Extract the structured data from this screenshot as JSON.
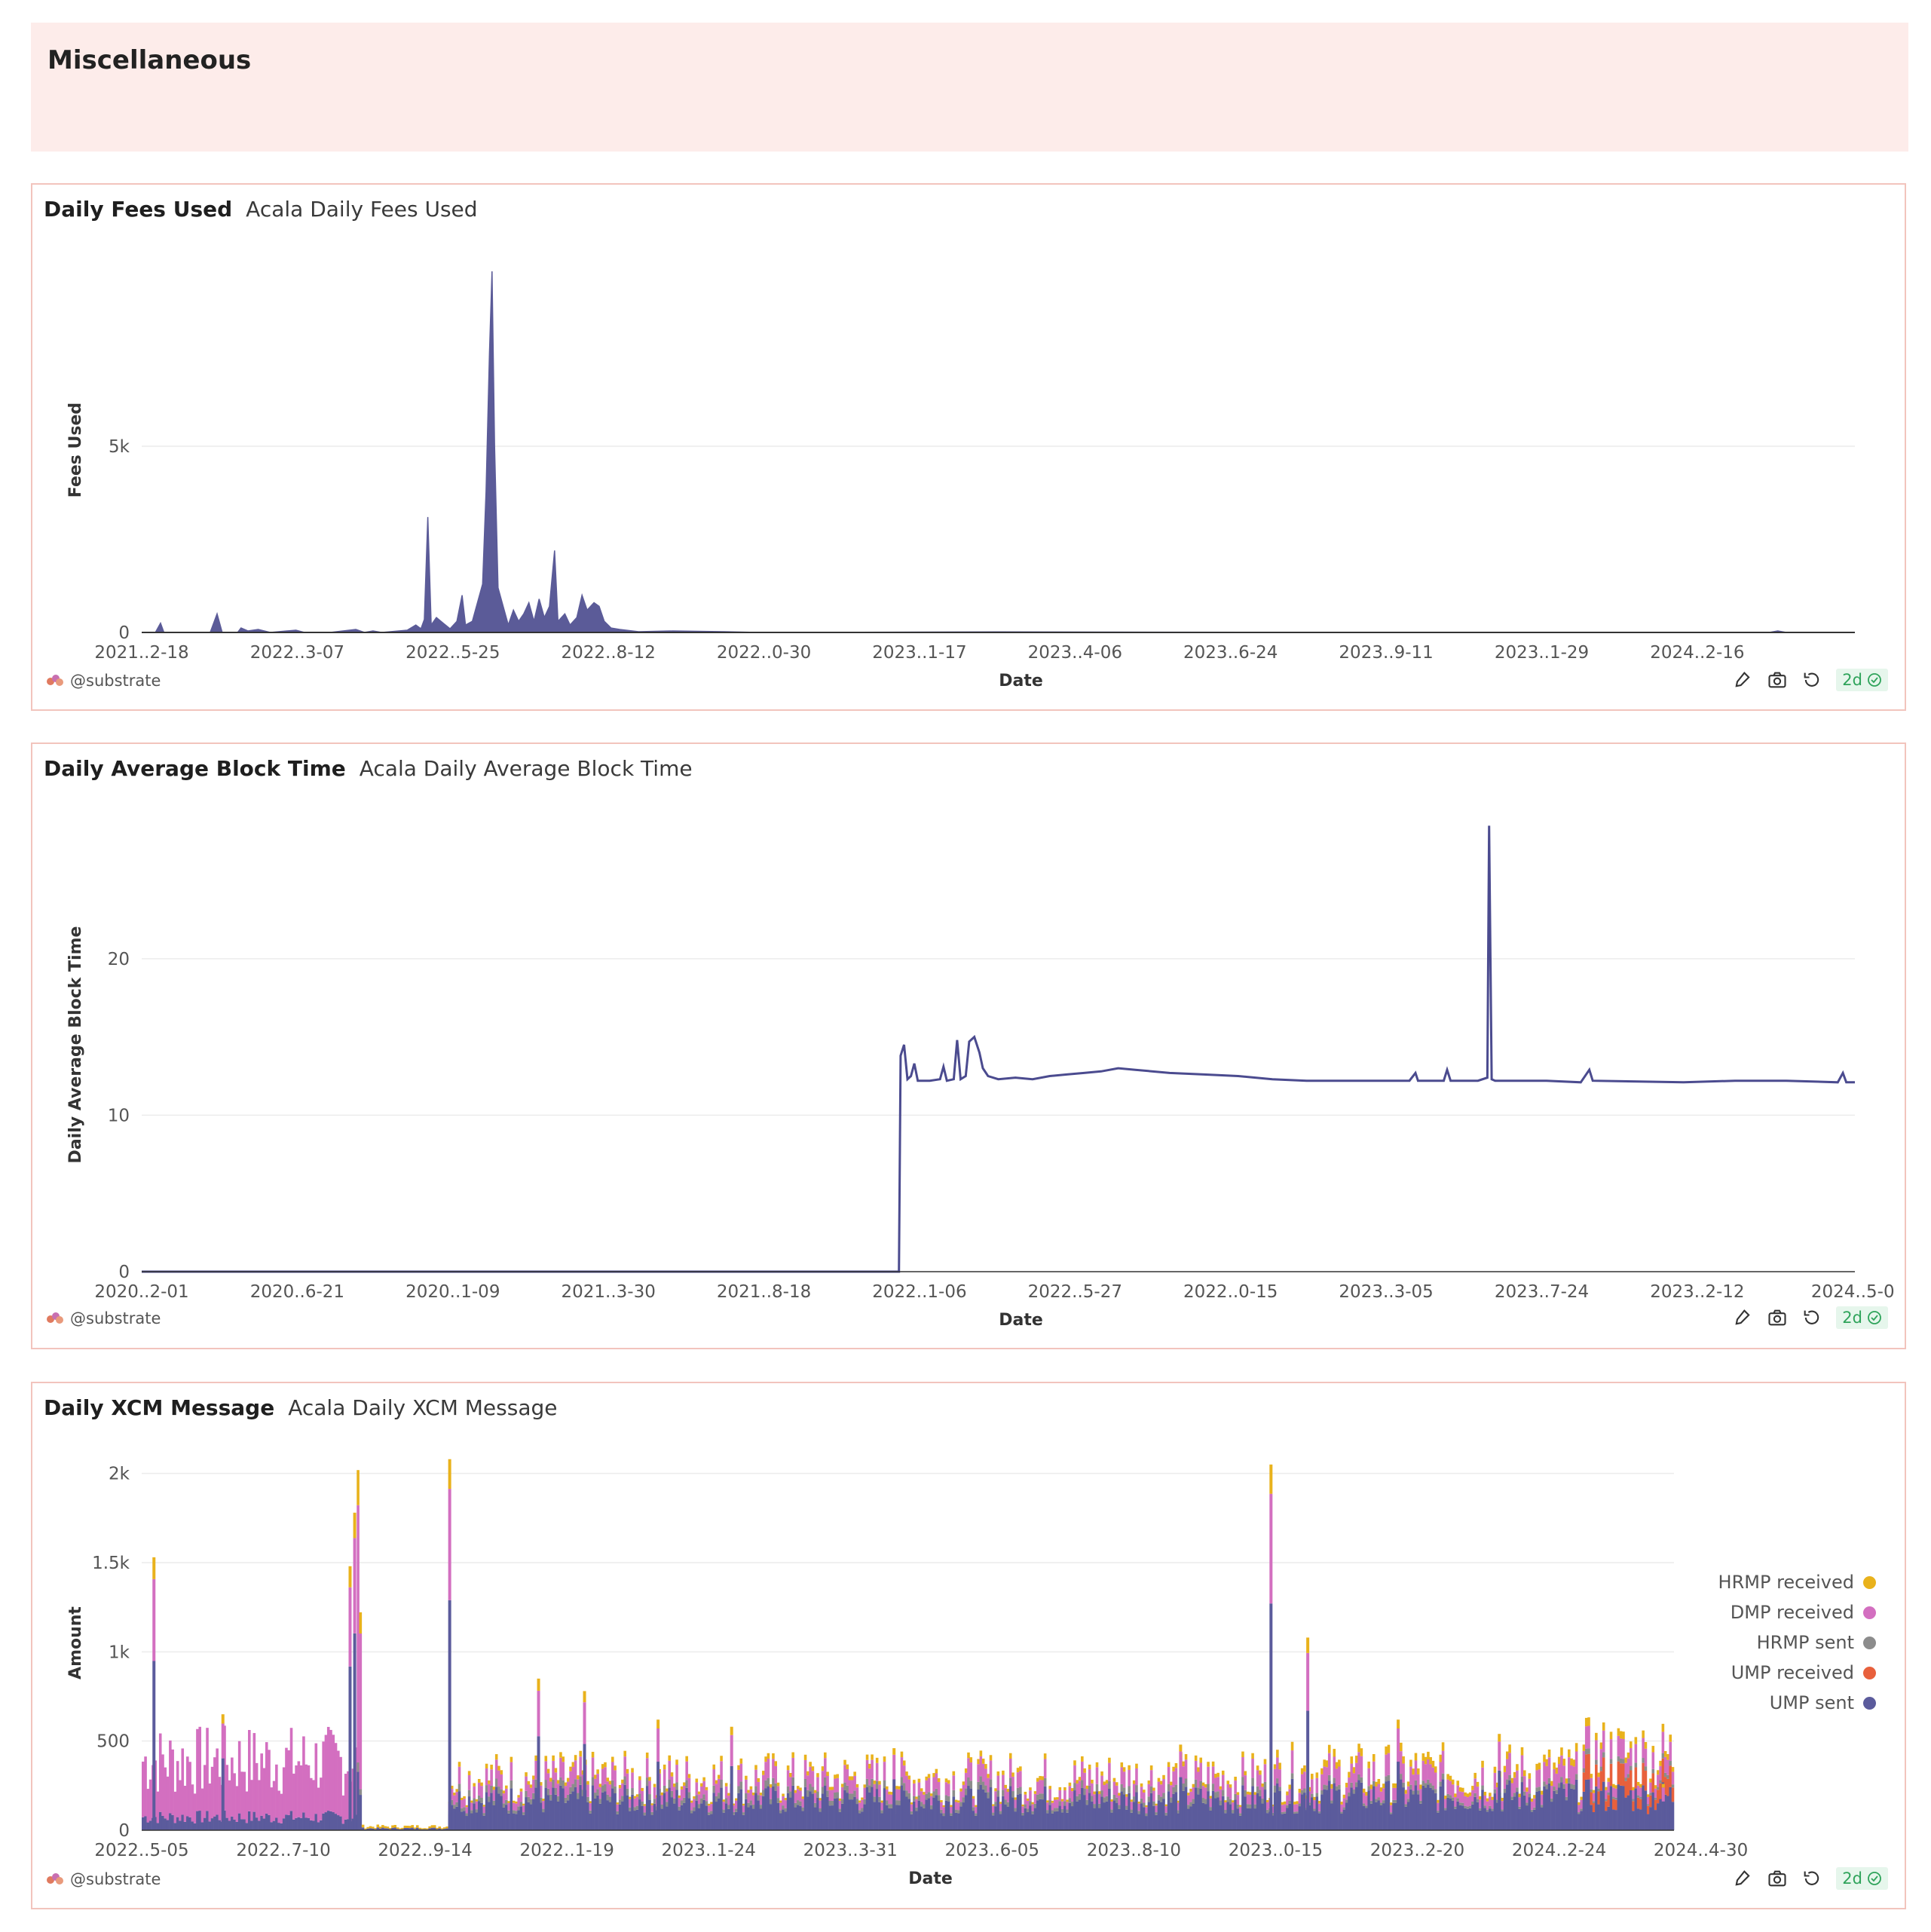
{
  "section": {
    "title": "Miscellaneous"
  },
  "panels": [
    {
      "title": "Daily Fees Used",
      "description": "Acala Daily Fees Used",
      "footer": {
        "brand": "@substrate",
        "age": "2d"
      }
    },
    {
      "title": "Daily Average Block Time",
      "description": "Acala Daily Average Block Time",
      "footer": {
        "brand": "@substrate",
        "age": "2d"
      }
    },
    {
      "title": "Daily XCM Message",
      "description": "Acala Daily XCM Message",
      "footer": {
        "brand": "@substrate",
        "age": "2d"
      }
    }
  ],
  "chart_data": [
    {
      "type": "area",
      "xlabel": "Date",
      "ylabel": "Fees Used",
      "x_ticks": [
        "2021..2-18",
        "2022..3-07",
        "2022..5-25",
        "2022..8-12",
        "2022..0-30",
        "2023..1-17",
        "2023..4-06",
        "2023..6-24",
        "2023..9-11",
        "2023..1-29",
        "2024..2-16"
      ],
      "y_ticks": [
        {
          "v": 0,
          "label": "0"
        },
        {
          "v": 5000,
          "label": "5k"
        }
      ],
      "ylim": [
        0,
        9800
      ],
      "grid": true,
      "series": [
        {
          "color": "#5b5b98",
          "points": [
            [
              0,
              0
            ],
            [
              0.008,
              0
            ],
            [
              0.011,
              250
            ],
            [
              0.013,
              0
            ],
            [
              0.04,
              0
            ],
            [
              0.044,
              500
            ],
            [
              0.047,
              0
            ],
            [
              0.056,
              0
            ],
            [
              0.058,
              120
            ],
            [
              0.062,
              40
            ],
            [
              0.068,
              80
            ],
            [
              0.075,
              0
            ],
            [
              0.09,
              60
            ],
            [
              0.095,
              0
            ],
            [
              0.11,
              0
            ],
            [
              0.125,
              80
            ],
            [
              0.13,
              0
            ],
            [
              0.135,
              40
            ],
            [
              0.14,
              0
            ],
            [
              0.155,
              60
            ],
            [
              0.16,
              200
            ],
            [
              0.163,
              100
            ],
            [
              0.165,
              350
            ],
            [
              0.167,
              3100
            ],
            [
              0.169,
              200
            ],
            [
              0.172,
              400
            ],
            [
              0.176,
              250
            ],
            [
              0.18,
              100
            ],
            [
              0.184,
              300
            ],
            [
              0.187,
              1000
            ],
            [
              0.189,
              200
            ],
            [
              0.193,
              300
            ],
            [
              0.196,
              800
            ],
            [
              0.199,
              1300
            ],
            [
              0.201,
              3800
            ],
            [
              0.203,
              7500
            ],
            [
              0.2045,
              9700
            ],
            [
              0.206,
              5000
            ],
            [
              0.208,
              1200
            ],
            [
              0.211,
              700
            ],
            [
              0.214,
              200
            ],
            [
              0.217,
              600
            ],
            [
              0.22,
              300
            ],
            [
              0.223,
              500
            ],
            [
              0.226,
              800
            ],
            [
              0.229,
              300
            ],
            [
              0.232,
              900
            ],
            [
              0.235,
              400
            ],
            [
              0.238,
              700
            ],
            [
              0.241,
              2200
            ],
            [
              0.243,
              300
            ],
            [
              0.247,
              500
            ],
            [
              0.25,
              200
            ],
            [
              0.254,
              400
            ],
            [
              0.257,
              1000
            ],
            [
              0.26,
              600
            ],
            [
              0.264,
              800
            ],
            [
              0.267,
              700
            ],
            [
              0.27,
              300
            ],
            [
              0.274,
              120
            ],
            [
              0.279,
              80
            ],
            [
              0.29,
              20
            ],
            [
              0.31,
              40
            ],
            [
              0.34,
              20
            ],
            [
              0.36,
              0
            ],
            [
              0.5,
              15
            ],
            [
              0.7,
              0
            ],
            [
              0.95,
              0
            ],
            [
              0.955,
              40
            ],
            [
              0.96,
              0
            ],
            [
              1,
              0
            ]
          ]
        }
      ]
    },
    {
      "type": "line",
      "xlabel": "Date",
      "ylabel": "Daily Average Block Time",
      "x_ticks": [
        "2020..2-01",
        "2020..6-21",
        "2020..1-09",
        "2021..3-30",
        "2021..8-18",
        "2022..1-06",
        "2022..5-27",
        "2022..0-15",
        "2023..3-05",
        "2023..7-24",
        "2023..2-12",
        "2024..5-0"
      ],
      "y_ticks": [
        0,
        10,
        20
      ],
      "ylim": [
        0,
        29
      ],
      "grid": true,
      "series": [
        {
          "name": "Daily Average Block Time",
          "color": "#4b4b8f",
          "points": [
            [
              0,
              0
            ],
            [
              0.442,
              0
            ],
            [
              0.443,
              13.8
            ],
            [
              0.445,
              14.5
            ],
            [
              0.447,
              12.3
            ],
            [
              0.449,
              12.5
            ],
            [
              0.451,
              13.3
            ],
            [
              0.453,
              12.2
            ],
            [
              0.46,
              12.2
            ],
            [
              0.466,
              12.3
            ],
            [
              0.468,
              13.1
            ],
            [
              0.47,
              12.2
            ],
            [
              0.474,
              12.3
            ],
            [
              0.476,
              14.8
            ],
            [
              0.478,
              12.3
            ],
            [
              0.481,
              12.5
            ],
            [
              0.483,
              14.7
            ],
            [
              0.486,
              15
            ],
            [
              0.489,
              14
            ],
            [
              0.491,
              13
            ],
            [
              0.494,
              12.5
            ],
            [
              0.5,
              12.3
            ],
            [
              0.51,
              12.4
            ],
            [
              0.52,
              12.3
            ],
            [
              0.53,
              12.5
            ],
            [
              0.54,
              12.6
            ],
            [
              0.55,
              12.7
            ],
            [
              0.56,
              12.8
            ],
            [
              0.57,
              13
            ],
            [
              0.58,
              12.9
            ],
            [
              0.6,
              12.7
            ],
            [
              0.62,
              12.6
            ],
            [
              0.64,
              12.5
            ],
            [
              0.66,
              12.3
            ],
            [
              0.68,
              12.2
            ],
            [
              0.7,
              12.2
            ],
            [
              0.72,
              12.2
            ],
            [
              0.74,
              12.2
            ],
            [
              0.7435,
              12.7
            ],
            [
              0.745,
              12.2
            ],
            [
              0.76,
              12.2
            ],
            [
              0.762,
              12.9
            ],
            [
              0.764,
              12.2
            ],
            [
              0.78,
              12.2
            ],
            [
              0.7855,
              12.4
            ],
            [
              0.7865,
              28.5
            ],
            [
              0.788,
              12.3
            ],
            [
              0.79,
              12.2
            ],
            [
              0.82,
              12.2
            ],
            [
              0.84,
              12.1
            ],
            [
              0.845,
              12.9
            ],
            [
              0.847,
              12.2
            ],
            [
              0.9,
              12.1
            ],
            [
              0.93,
              12.2
            ],
            [
              0.96,
              12.2
            ],
            [
              0.99,
              12.1
            ],
            [
              0.993,
              12.7
            ],
            [
              0.995,
              12.1
            ],
            [
              1,
              12.1
            ]
          ]
        }
      ]
    },
    {
      "type": "bar",
      "stacked": true,
      "xlabel": "Date",
      "ylabel": "Amount",
      "x_ticks": [
        "2022..5-05",
        "2022..7-10",
        "2022..9-14",
        "2022..1-19",
        "2023..1-24",
        "2023..3-31",
        "2023..6-05",
        "2023..8-10",
        "2023..0-15",
        "2023..2-20",
        "2024..2-24",
        "2024..4-30"
      ],
      "y_ticks": [
        {
          "v": 0,
          "label": "0"
        },
        {
          "v": 500,
          "label": "500"
        },
        {
          "v": 1000,
          "label": "1k"
        },
        {
          "v": 1500,
          "label": "1.5k"
        },
        {
          "v": 2000,
          "label": "2k"
        }
      ],
      "ylim": [
        0,
        2100
      ],
      "grid": true,
      "legend_position": "right",
      "series": [
        {
          "name": "HRMP received",
          "color": "#e9b21c"
        },
        {
          "name": "DMP received",
          "color": "#d36fc0"
        },
        {
          "name": "HRMP sent",
          "color": "#8c8c8c"
        },
        {
          "name": "UMP received",
          "color": "#e8603c"
        },
        {
          "name": "UMP sent",
          "color": "#5b5b9c"
        }
      ],
      "segments": [
        {
          "from": 0.0,
          "to": 0.14,
          "ump_sent": 70,
          "dmp_received": 300,
          "hrmp_sent": 0,
          "hrmp_received": 0
        },
        {
          "from": 0.14,
          "to": 0.143,
          "ump_sent": 250,
          "dmp_received": 1100,
          "hrmp_sent": 40,
          "hrmp_received": 150
        },
        {
          "from": 0.143,
          "to": 0.2,
          "ump_sent": 10,
          "dmp_received": 0,
          "hrmp_sent": 0,
          "hrmp_received": 10
        },
        {
          "from": 0.2,
          "to": 0.74,
          "ump_sent": 160,
          "dmp_received": 70,
          "hrmp_sent": 30,
          "hrmp_received": 20
        },
        {
          "from": 0.74,
          "to": 1.0,
          "ump_sent": 180,
          "dmp_received": 80,
          "hrmp_sent": 20,
          "hrmp_received": 30,
          "ump_received_after": 0.94
        }
      ],
      "spikes": [
        {
          "x": 0.008,
          "v": 1530
        },
        {
          "x": 0.053,
          "v": 650
        },
        {
          "x": 0.136,
          "v": 1480
        },
        {
          "x": 0.139,
          "v": 1780
        },
        {
          "x": 0.201,
          "v": 2080
        },
        {
          "x": 0.259,
          "v": 850
        },
        {
          "x": 0.289,
          "v": 780
        },
        {
          "x": 0.337,
          "v": 620
        },
        {
          "x": 0.385,
          "v": 580
        },
        {
          "x": 0.491,
          "v": 460
        },
        {
          "x": 0.678,
          "v": 480
        },
        {
          "x": 0.737,
          "v": 2050
        },
        {
          "x": 0.761,
          "v": 1080
        },
        {
          "x": 0.82,
          "v": 620
        },
        {
          "x": 0.886,
          "v": 540
        },
        {
          "x": 0.993,
          "v": 260
        }
      ]
    }
  ]
}
